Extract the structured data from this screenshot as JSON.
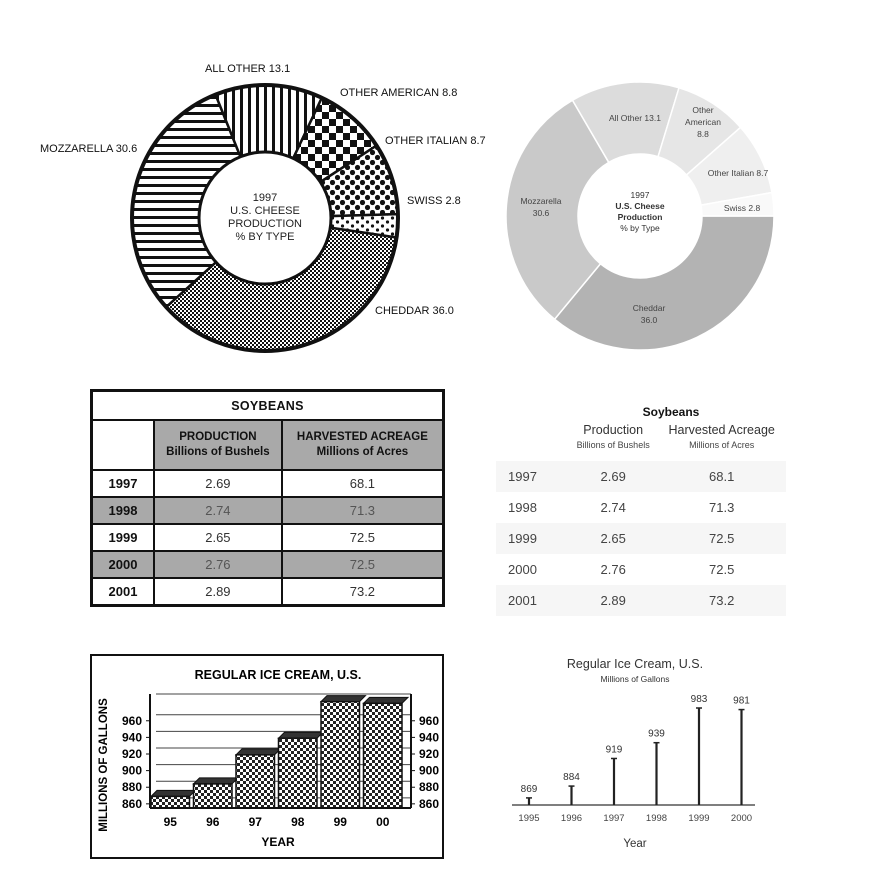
{
  "chart_data": [
    {
      "type": "pie",
      "id": "cheese-patterned",
      "center_label": [
        "1997",
        "U.S. CHEESE",
        "PRODUCTION",
        "% BY TYPE"
      ],
      "slices": [
        {
          "label": "CHEDDAR",
          "value": 36.0,
          "display": "CHEDDAR 36.0"
        },
        {
          "label": "MOZZARELLA",
          "value": 30.6,
          "display": "MOZZARELLA 30.6"
        },
        {
          "label": "ALL OTHER",
          "value": 13.1,
          "display": "ALL OTHER 13.1"
        },
        {
          "label": "OTHER AMERICAN",
          "value": 8.8,
          "display": "OTHER AMERICAN 8.8"
        },
        {
          "label": "OTHER ITALIAN",
          "value": 8.7,
          "display": "OTHER ITALIAN 8.7"
        },
        {
          "label": "SWISS",
          "value": 2.8,
          "display": "SWISS 2.8"
        }
      ]
    },
    {
      "type": "pie",
      "id": "cheese-gray",
      "center_label": [
        "1997",
        "U.S. Cheese",
        "Production",
        "% by Type"
      ],
      "slices": [
        {
          "label": "Cheddar",
          "value": 36.0,
          "display": [
            "Cheddar",
            "36.0"
          ],
          "color": "#b3b3b3"
        },
        {
          "label": "Mozzarella",
          "value": 30.6,
          "display": [
            "Mozzarella",
            "30.6"
          ],
          "color": "#c9c9c9"
        },
        {
          "label": "All Other",
          "value": 13.1,
          "display": [
            "All Other 13.1"
          ],
          "color": "#dcdcdc"
        },
        {
          "label": "Other American",
          "value": 8.8,
          "display": [
            "Other",
            "American",
            "8.8"
          ],
          "color": "#e6e6e6"
        },
        {
          "label": "Other Italian",
          "value": 8.7,
          "display": [
            "Other Italian 8.7"
          ],
          "color": "#efefef"
        },
        {
          "label": "Swiss",
          "value": 2.8,
          "display": [
            "Swiss 2.8"
          ],
          "color": "#f9f9f9"
        }
      ]
    },
    {
      "type": "table",
      "id": "soybeans-boxed",
      "title": "SOYBEANS",
      "columns": [
        {
          "label": "PRODUCTION",
          "sub": "Billions of Bushels"
        },
        {
          "label": "HARVESTED ACREAGE",
          "sub": "Millions of Acres"
        }
      ],
      "rows": [
        {
          "year": "1997",
          "production": "2.69",
          "acreage": "68.1"
        },
        {
          "year": "1998",
          "production": "2.74",
          "acreage": "71.3"
        },
        {
          "year": "1999",
          "production": "2.65",
          "acreage": "72.5"
        },
        {
          "year": "2000",
          "production": "2.76",
          "acreage": "72.5"
        },
        {
          "year": "2001",
          "production": "2.89",
          "acreage": "73.2"
        }
      ]
    },
    {
      "type": "table",
      "id": "soybeans-light",
      "title": "Soybeans",
      "columns": [
        {
          "label": "Production",
          "sub": "Billions of Bushels"
        },
        {
          "label": "Harvested Acreage",
          "sub": "Millions of Acres"
        }
      ],
      "rows": [
        {
          "year": "1997",
          "production": "2.69",
          "acreage": "68.1"
        },
        {
          "year": "1998",
          "production": "2.74",
          "acreage": "71.3"
        },
        {
          "year": "1999",
          "production": "2.65",
          "acreage": "72.5"
        },
        {
          "year": "2000",
          "production": "2.76",
          "acreage": "72.5"
        },
        {
          "year": "2001",
          "production": "2.89",
          "acreage": "73.2"
        }
      ]
    },
    {
      "type": "bar",
      "id": "ice-cream-3d",
      "title": "REGULAR ICE CREAM, U.S.",
      "xlabel": "YEAR",
      "ylabel": "MILLIONS OF GALLONS",
      "categories": [
        "95",
        "96",
        "97",
        "98",
        "99",
        "00"
      ],
      "values": [
        869,
        884,
        919,
        939,
        983,
        981
      ],
      "ylim": [
        855,
        985
      ],
      "yticks": [
        860,
        880,
        900,
        920,
        940,
        960
      ],
      "grid": true
    },
    {
      "type": "bar",
      "id": "ice-cream-lines",
      "title": "Regular Ice Cream, U.S.",
      "subtitle": "Millions of Gallons",
      "xlabel": "Year",
      "categories": [
        "1995",
        "1996",
        "1997",
        "1998",
        "1999",
        "2000"
      ],
      "values": [
        869,
        884,
        919,
        939,
        983,
        981
      ],
      "ylim": [
        860,
        983
      ]
    }
  ]
}
